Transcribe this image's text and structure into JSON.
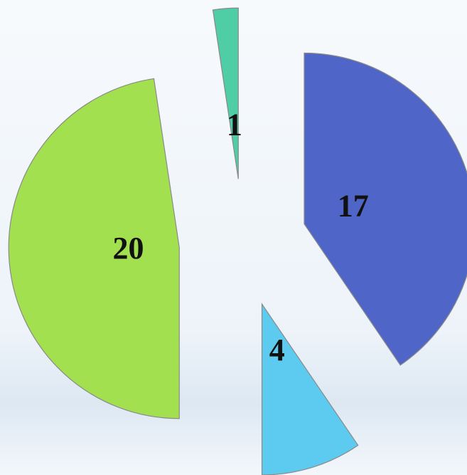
{
  "chart_data": {
    "type": "pie",
    "exploded": true,
    "values": [
      17,
      4,
      20,
      1
    ],
    "colors": [
      "#4f66c8",
      "#5ccbef",
      "#a3e04f",
      "#4fcda5"
    ]
  }
}
